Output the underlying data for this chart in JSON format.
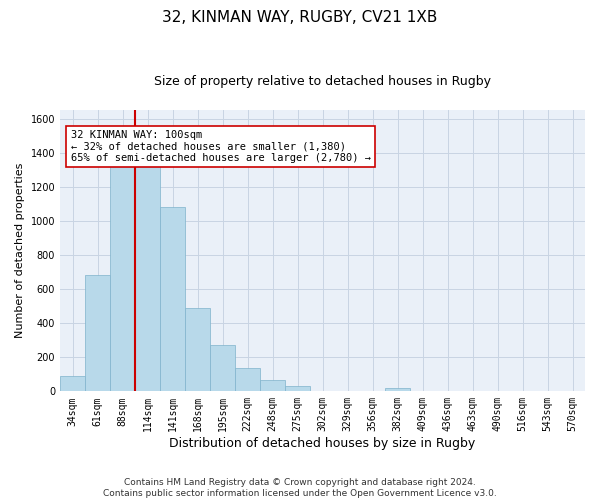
{
  "title_line1": "32, KINMAN WAY, RUGBY, CV21 1XB",
  "title_line2": "Size of property relative to detached houses in Rugby",
  "xlabel": "Distribution of detached houses by size in Rugby",
  "ylabel": "Number of detached properties",
  "categories": [
    "34sqm",
    "61sqm",
    "88sqm",
    "114sqm",
    "141sqm",
    "168sqm",
    "195sqm",
    "222sqm",
    "248sqm",
    "275sqm",
    "302sqm",
    "329sqm",
    "356sqm",
    "382sqm",
    "409sqm",
    "436sqm",
    "463sqm",
    "490sqm",
    "516sqm",
    "543sqm",
    "570sqm"
  ],
  "values": [
    90,
    680,
    1330,
    1330,
    1080,
    490,
    270,
    135,
    65,
    30,
    0,
    0,
    0,
    20,
    0,
    0,
    0,
    0,
    0,
    0,
    0
  ],
  "bar_color": "#b8d9ea",
  "bar_edge_color": "#7fb3cc",
  "vline_color": "#cc0000",
  "annotation_text": "32 KINMAN WAY: 100sqm\n← 32% of detached houses are smaller (1,380)\n65% of semi-detached houses are larger (2,780) →",
  "annotation_box_color": "#ffffff",
  "annotation_box_edge": "#cc0000",
  "ylim": [
    0,
    1650
  ],
  "yticks": [
    0,
    200,
    400,
    600,
    800,
    1000,
    1200,
    1400,
    1600
  ],
  "grid_color": "#c8d4e3",
  "background_color": "#eaf0f8",
  "footer_text": "Contains HM Land Registry data © Crown copyright and database right 2024.\nContains public sector information licensed under the Open Government Licence v3.0.",
  "title1_fontsize": 11,
  "title2_fontsize": 9,
  "xlabel_fontsize": 9,
  "ylabel_fontsize": 8,
  "tick_fontsize": 7,
  "annotation_fontsize": 7.5,
  "footer_fontsize": 6.5
}
